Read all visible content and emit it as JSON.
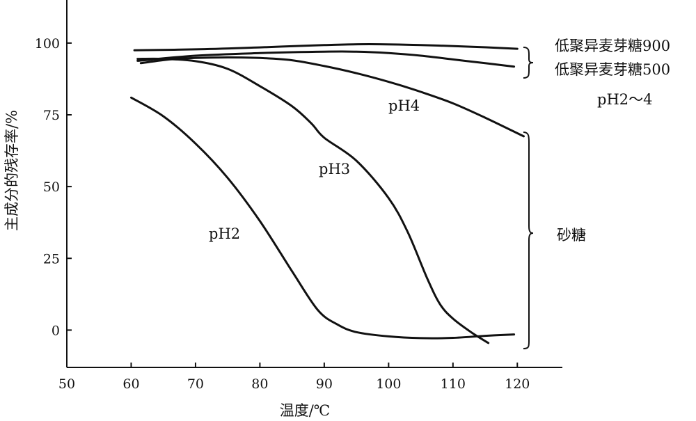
{
  "chart_data": {
    "type": "line",
    "title": "",
    "xlabel": "温度/℃",
    "ylabel": "主成分的残存率/%",
    "xlim": [
      50,
      127
    ],
    "ylim": [
      -13,
      115
    ],
    "xticks": [
      50,
      60,
      70,
      80,
      90,
      100,
      110,
      120
    ],
    "yticks": [
      0,
      25,
      50,
      75,
      100
    ],
    "grid": false,
    "legend": "none",
    "series": [
      {
        "name": "低聚异麦芽糖900",
        "x": [
          60.5,
          70,
          80,
          90,
          97,
          105,
          113,
          120
        ],
        "y": [
          97.5,
          97.8,
          98.5,
          99.3,
          99.6,
          99.3,
          98.7,
          98.0
        ]
      },
      {
        "name": "低聚异麦芽糖500",
        "x": [
          61,
          70,
          80,
          90,
          95,
          100,
          105,
          110,
          115,
          119.5
        ],
        "y": [
          93.8,
          95.6,
          96.5,
          97.0,
          97.0,
          96.5,
          95.6,
          94.3,
          93.0,
          91.8
        ]
      },
      {
        "name": "pH4",
        "x": [
          61.5,
          66,
          70,
          75,
          80,
          85,
          90,
          95,
          100,
          105,
          110,
          115,
          121
        ],
        "y": [
          93.0,
          94.3,
          94.8,
          95.0,
          94.8,
          94.0,
          92.0,
          89.5,
          86.5,
          83.0,
          79.0,
          74.0,
          67.5
        ]
      },
      {
        "name": "pH3",
        "x": [
          61,
          65,
          70,
          75,
          80,
          85,
          88,
          90,
          95,
          100,
          103,
          106,
          108,
          110,
          113,
          115.5
        ],
        "y": [
          94.5,
          94.5,
          93.7,
          91.0,
          85.0,
          78.0,
          72.0,
          67.0,
          59.0,
          46.0,
          34.0,
          18.0,
          9.0,
          4.0,
          -1.0,
          -4.5
        ]
      },
      {
        "name": "pH2",
        "x": [
          60,
          65,
          70,
          75,
          80,
          85,
          89,
          92,
          95,
          100,
          105,
          110,
          115,
          119.5
        ],
        "y": [
          81.0,
          74.5,
          65.0,
          53.0,
          38.0,
          20.5,
          7.0,
          2.0,
          -0.7,
          -2.2,
          -2.8,
          -2.7,
          -2.0,
          -1.5
        ]
      }
    ],
    "annotations": {
      "imo900": "低聚异麦芽糖900",
      "imo500": "低聚异麦芽糖500",
      "ph_range": "pH2～4",
      "ph4": "pH4",
      "ph3": "pH3",
      "ph2": "pH2",
      "sucrose": "砂糖"
    }
  }
}
